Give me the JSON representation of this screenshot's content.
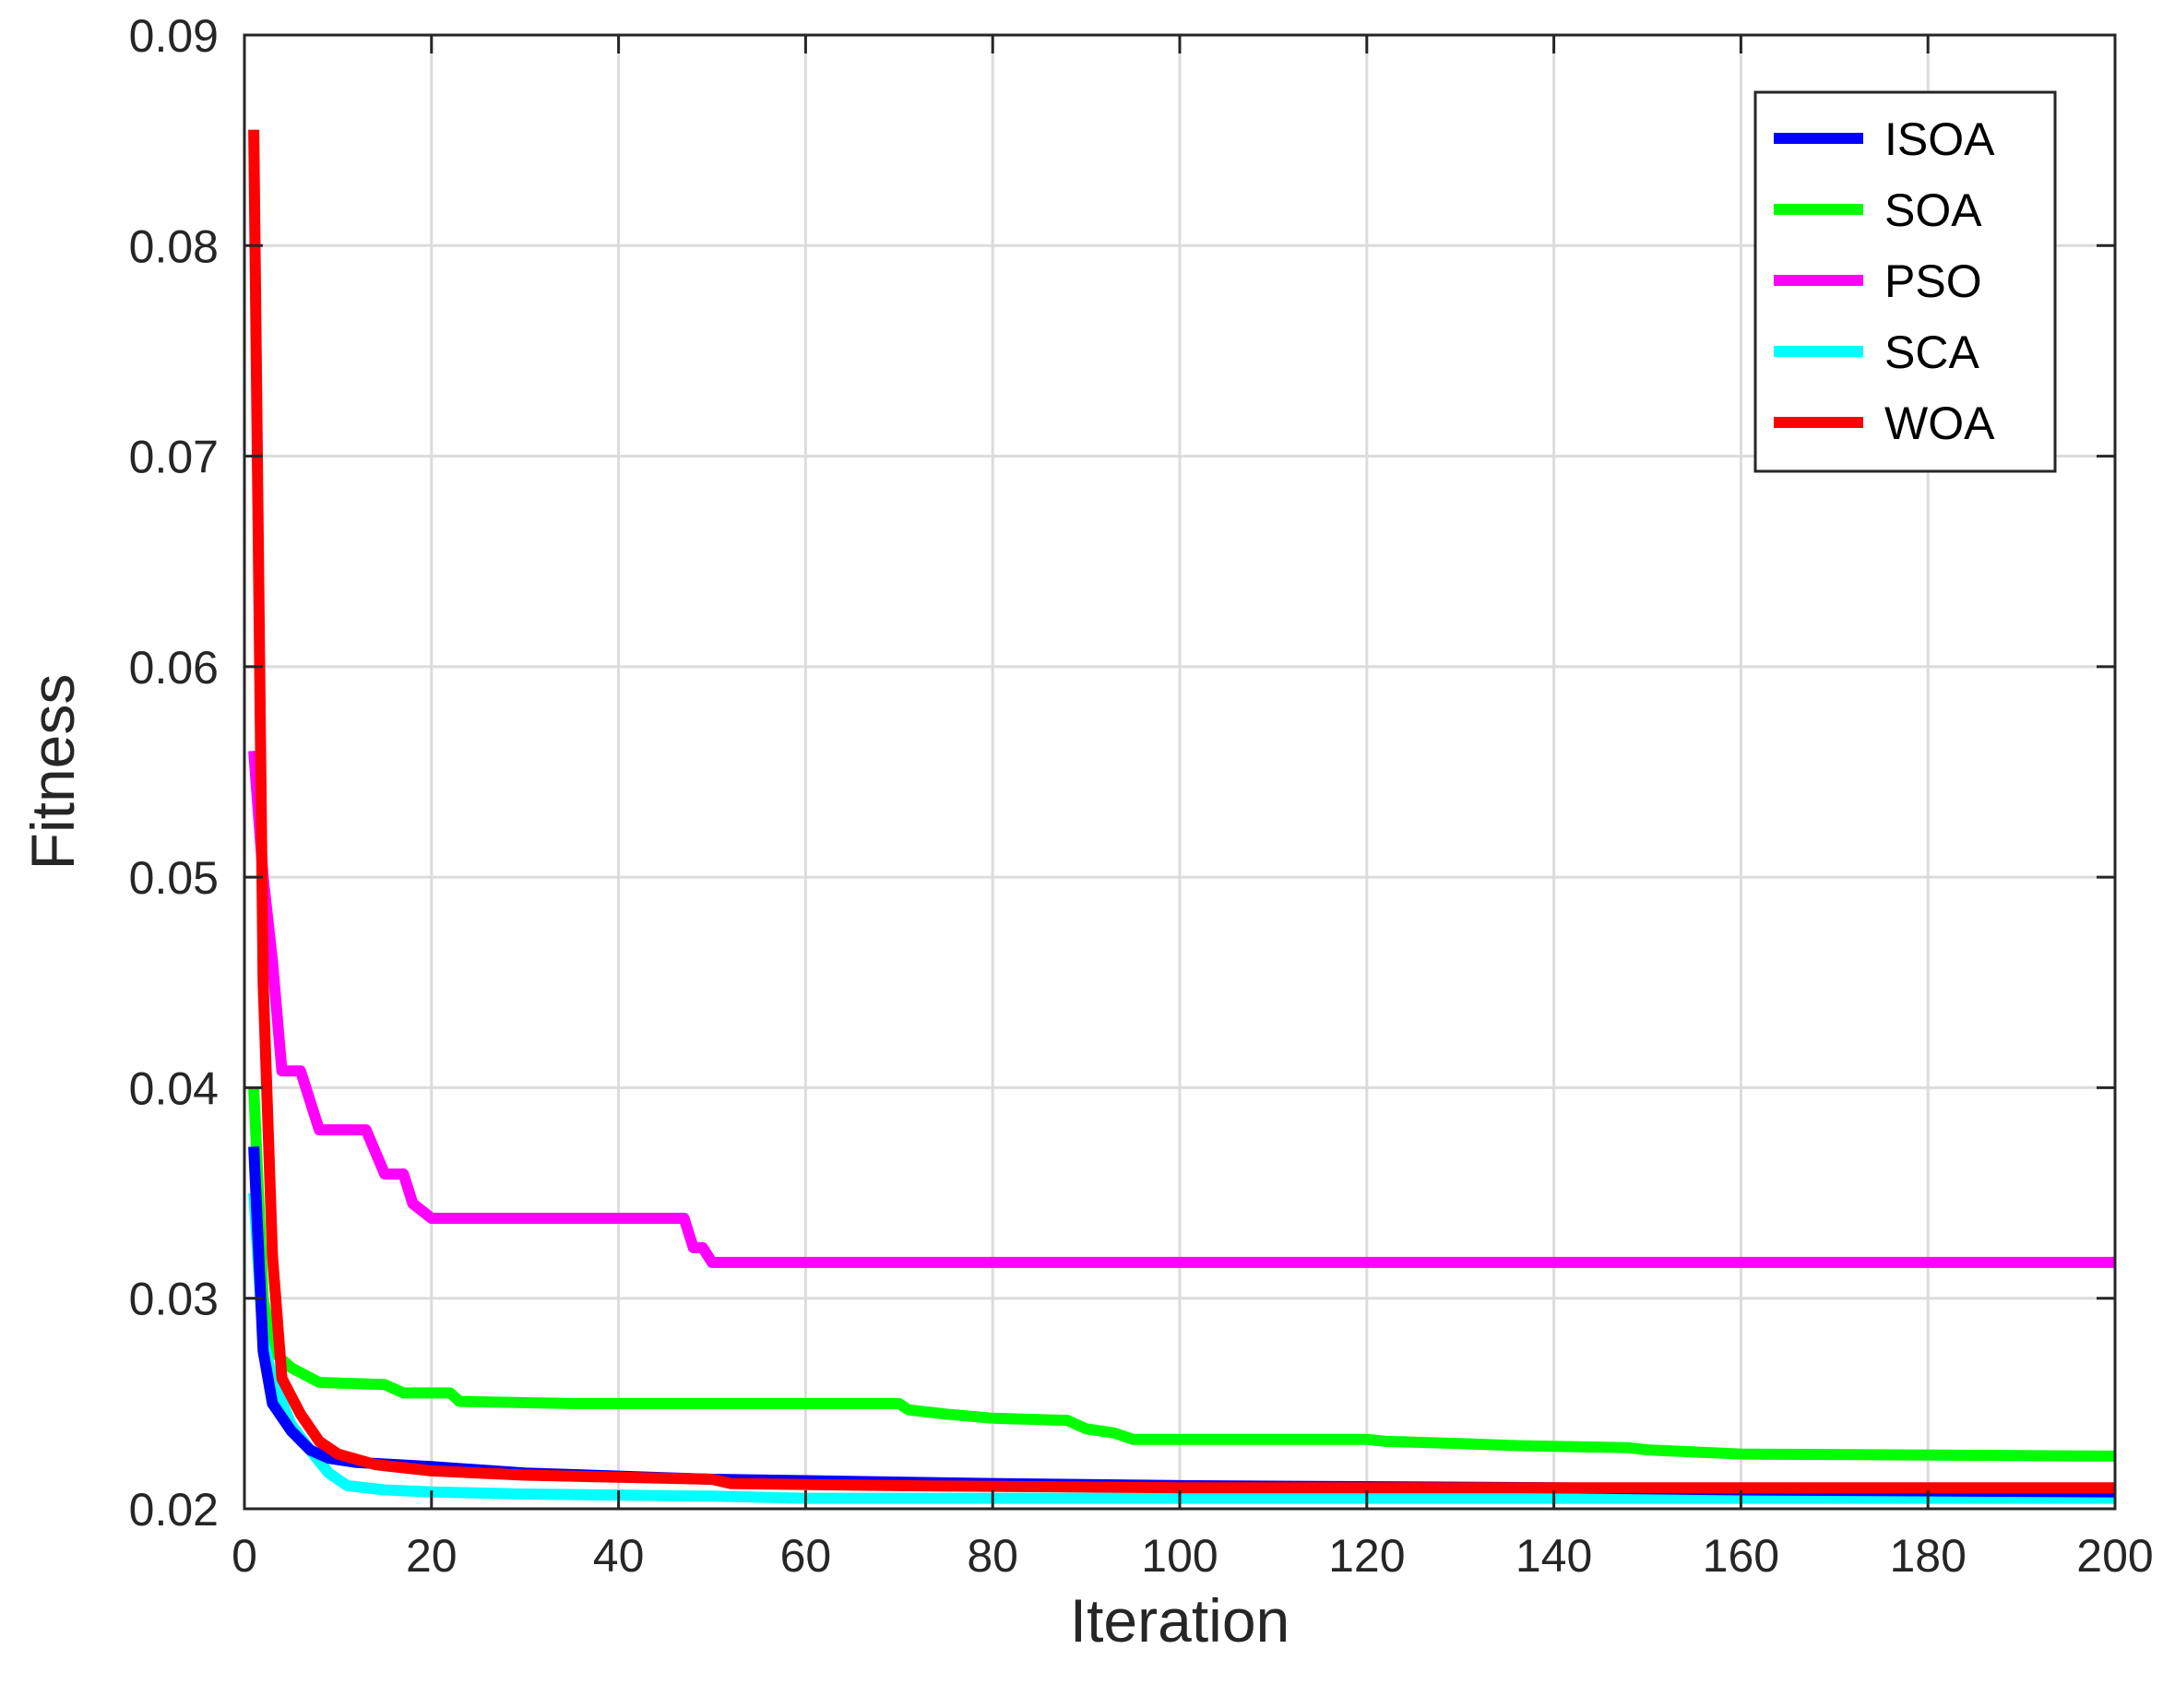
{
  "chart_data": {
    "type": "line",
    "xlabel": "Iteration",
    "ylabel": "Fitness",
    "xlim": [
      0,
      200
    ],
    "ylim": [
      0.02,
      0.09
    ],
    "xticks": [
      0,
      20,
      40,
      60,
      80,
      100,
      120,
      140,
      160,
      180,
      200
    ],
    "yticks": [
      0.02,
      0.03,
      0.04,
      0.05,
      0.06,
      0.07,
      0.08,
      0.09
    ],
    "xtick_labels": [
      "0",
      "20",
      "40",
      "60",
      "80",
      "100",
      "120",
      "140",
      "160",
      "180",
      "200"
    ],
    "ytick_labels": [
      "0.02",
      "0.03",
      "0.04",
      "0.05",
      "0.06",
      "0.07",
      "0.08",
      "0.09"
    ],
    "grid": true,
    "legend_position": "top-right",
    "series": [
      {
        "name": "ISOA",
        "color": "#0000ff",
        "points": [
          [
            1,
            0.0372
          ],
          [
            2,
            0.0275
          ],
          [
            3,
            0.025
          ],
          [
            5,
            0.0237
          ],
          [
            7,
            0.0228
          ],
          [
            9,
            0.0224
          ],
          [
            12,
            0.0222
          ],
          [
            20,
            0.022
          ],
          [
            30,
            0.0217
          ],
          [
            50,
            0.0214
          ],
          [
            80,
            0.0212
          ],
          [
            100,
            0.0211
          ],
          [
            140,
            0.021
          ],
          [
            160,
            0.0209
          ],
          [
            200,
            0.0208
          ]
        ]
      },
      {
        "name": "SOA",
        "color": "#00ff00",
        "points": [
          [
            1,
            0.04
          ],
          [
            2,
            0.03
          ],
          [
            3,
            0.0275
          ],
          [
            5,
            0.0267
          ],
          [
            8,
            0.026
          ],
          [
            15,
            0.0259
          ],
          [
            17,
            0.0255
          ],
          [
            22,
            0.0255
          ],
          [
            23,
            0.0251
          ],
          [
            35,
            0.025
          ],
          [
            70,
            0.025
          ],
          [
            71,
            0.0247
          ],
          [
            75,
            0.0245
          ],
          [
            80,
            0.0243
          ],
          [
            88,
            0.0242
          ],
          [
            90,
            0.0238
          ],
          [
            93,
            0.0236
          ],
          [
            95,
            0.0233
          ],
          [
            120,
            0.0233
          ],
          [
            122,
            0.0232
          ],
          [
            130,
            0.0231
          ],
          [
            136,
            0.023
          ],
          [
            148,
            0.0229
          ],
          [
            150,
            0.0228
          ],
          [
            160,
            0.0226
          ],
          [
            200,
            0.0225
          ]
        ]
      },
      {
        "name": "PSO",
        "color": "#ff00ff",
        "points": [
          [
            1,
            0.056
          ],
          [
            2,
            0.05
          ],
          [
            3,
            0.046
          ],
          [
            4,
            0.0408
          ],
          [
            6,
            0.0408
          ],
          [
            8,
            0.038
          ],
          [
            13,
            0.038
          ],
          [
            15,
            0.0359
          ],
          [
            17,
            0.0359
          ],
          [
            18,
            0.0345
          ],
          [
            20,
            0.0338
          ],
          [
            47,
            0.0338
          ],
          [
            48,
            0.0324
          ],
          [
            49,
            0.0324
          ],
          [
            50,
            0.0317
          ],
          [
            200,
            0.0317
          ]
        ]
      },
      {
        "name": "SCA",
        "color": "#00ffff",
        "points": [
          [
            1,
            0.035
          ],
          [
            2,
            0.028
          ],
          [
            3,
            0.0262
          ],
          [
            5,
            0.024
          ],
          [
            7,
            0.0228
          ],
          [
            9,
            0.0217
          ],
          [
            11,
            0.0211
          ],
          [
            15,
            0.0209
          ],
          [
            20,
            0.0208
          ],
          [
            30,
            0.0207
          ],
          [
            50,
            0.0206
          ],
          [
            60,
            0.0205
          ],
          [
            200,
            0.0205
          ]
        ]
      },
      {
        "name": "WOA",
        "color": "#ff0000",
        "points": [
          [
            1,
            0.0855
          ],
          [
            2,
            0.045
          ],
          [
            3,
            0.032
          ],
          [
            4,
            0.0262
          ],
          [
            6,
            0.0245
          ],
          [
            8,
            0.0232
          ],
          [
            10,
            0.0226
          ],
          [
            14,
            0.0221
          ],
          [
            20,
            0.0218
          ],
          [
            30,
            0.0216
          ],
          [
            50,
            0.0214
          ],
          [
            52,
            0.0212
          ],
          [
            70,
            0.0211
          ],
          [
            100,
            0.021
          ],
          [
            200,
            0.021
          ]
        ]
      }
    ]
  }
}
